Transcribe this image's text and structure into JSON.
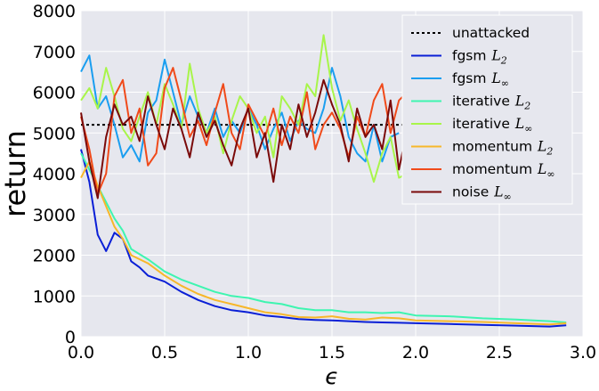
{
  "chart_data": {
    "type": "line",
    "title": "",
    "xlabel": "ϵ",
    "ylabel": "return",
    "xlim": [
      0,
      3
    ],
    "ylim": [
      0,
      8000
    ],
    "xticks": [
      "0.0",
      "0.5",
      "1.0",
      "1.5",
      "2.0",
      "2.5",
      "3.0"
    ],
    "yticks": [
      "0",
      "1000",
      "2000",
      "3000",
      "4000",
      "5000",
      "6000",
      "7000",
      "8000"
    ],
    "grid": true,
    "legend_position": "top-right",
    "series": [
      {
        "name": "unattacked",
        "label_main": "unattacked",
        "label_sub": "",
        "color": "#000000",
        "dash": true,
        "x": [
          0,
          2.9
        ],
        "y": [
          5200,
          5200
        ]
      },
      {
        "name": "fgsm L2",
        "label_main": "fgsm",
        "label_sub": "L",
        "label_subscript": "2",
        "color": "#0a1fd6",
        "x": [
          0,
          0.05,
          0.1,
          0.15,
          0.2,
          0.25,
          0.3,
          0.35,
          0.4,
          0.5,
          0.6,
          0.7,
          0.8,
          0.9,
          1.0,
          1.1,
          1.2,
          1.3,
          1.4,
          1.5,
          1.6,
          1.7,
          1.8,
          1.9,
          2.0,
          2.2,
          2.4,
          2.6,
          2.8,
          2.9
        ],
        "y": [
          4600,
          3800,
          2500,
          2100,
          2550,
          2400,
          1850,
          1700,
          1500,
          1350,
          1100,
          900,
          750,
          650,
          600,
          520,
          480,
          430,
          410,
          400,
          380,
          360,
          350,
          340,
          330,
          310,
          290,
          270,
          250,
          280
        ]
      },
      {
        "name": "fgsm L∞",
        "label_main": "fgsm",
        "label_sub": "L",
        "label_subscript": "∞",
        "color": "#1a9ef0",
        "x": [
          0,
          0.05,
          0.1,
          0.15,
          0.2,
          0.25,
          0.3,
          0.35,
          0.4,
          0.45,
          0.5,
          0.55,
          0.6,
          0.65,
          0.7,
          0.75,
          0.8,
          0.85,
          0.9,
          0.95,
          1.0,
          1.05,
          1.1,
          1.15,
          1.2,
          1.25,
          1.3,
          1.35,
          1.4,
          1.45,
          1.5,
          1.55,
          1.6,
          1.65,
          1.7,
          1.75,
          1.8,
          1.85,
          1.9
        ],
        "y": [
          6500,
          6900,
          5600,
          5900,
          5200,
          4400,
          4700,
          4300,
          5500,
          5800,
          6800,
          6000,
          5200,
          5900,
          5400,
          5000,
          5600,
          4900,
          5300,
          5000,
          5600,
          5200,
          4600,
          5100,
          5500,
          4800,
          5300,
          5100,
          5000,
          5600,
          6600,
          5900,
          4900,
          4500,
          4300,
          5200,
          4300,
          4900,
          5000
        ]
      },
      {
        "name": "iterative L2",
        "label_main": "iterative",
        "label_sub": "L",
        "label_subscript": "2",
        "color": "#3ef5b0",
        "x": [
          0,
          0.05,
          0.1,
          0.15,
          0.2,
          0.25,
          0.3,
          0.4,
          0.5,
          0.6,
          0.7,
          0.8,
          0.9,
          1.0,
          1.1,
          1.2,
          1.3,
          1.4,
          1.5,
          1.6,
          1.7,
          1.8,
          1.9,
          2.0,
          2.2,
          2.4,
          2.6,
          2.8,
          2.9
        ],
        "y": [
          4500,
          4100,
          3700,
          3300,
          2900,
          2600,
          2150,
          1900,
          1600,
          1400,
          1250,
          1100,
          1000,
          950,
          850,
          800,
          700,
          650,
          650,
          600,
          600,
          580,
          600,
          520,
          500,
          450,
          420,
          380,
          350
        ]
      },
      {
        "name": "iterative L∞",
        "label_main": "iterative",
        "label_sub": "L",
        "label_subscript": "∞",
        "color": "#a8f54a",
        "x": [
          0,
          0.05,
          0.1,
          0.15,
          0.2,
          0.25,
          0.3,
          0.35,
          0.4,
          0.45,
          0.5,
          0.55,
          0.6,
          0.65,
          0.7,
          0.75,
          0.8,
          0.85,
          0.9,
          0.95,
          1.0,
          1.05,
          1.1,
          1.15,
          1.2,
          1.25,
          1.3,
          1.35,
          1.4,
          1.45,
          1.5,
          1.55,
          1.6,
          1.65,
          1.7,
          1.75,
          1.8,
          1.85,
          1.9,
          1.95
        ],
        "y": [
          5800,
          6100,
          5600,
          6600,
          5900,
          5100,
          4800,
          5400,
          6000,
          5200,
          6200,
          5700,
          5100,
          6700,
          5600,
          5000,
          5400,
          4500,
          5300,
          5900,
          5600,
          5000,
          5400,
          4400,
          5900,
          5600,
          5200,
          6200,
          5900,
          7400,
          6100,
          5300,
          5800,
          5100,
          4500,
          3800,
          4500,
          4900,
          3900,
          4000
        ]
      },
      {
        "name": "momentum L2",
        "label_main": "momentum",
        "label_sub": "L",
        "label_subscript": "2",
        "color": "#f7b72a",
        "x": [
          0,
          0.05,
          0.1,
          0.15,
          0.2,
          0.25,
          0.3,
          0.4,
          0.5,
          0.6,
          0.7,
          0.8,
          0.9,
          1.0,
          1.1,
          1.2,
          1.3,
          1.4,
          1.5,
          1.6,
          1.7,
          1.8,
          1.9,
          2.0,
          2.2,
          2.4,
          2.6,
          2.8,
          2.9
        ],
        "y": [
          3900,
          4300,
          3700,
          3200,
          2700,
          2400,
          2000,
          1800,
          1500,
          1250,
          1050,
          900,
          800,
          700,
          600,
          550,
          480,
          470,
          500,
          440,
          420,
          470,
          450,
          400,
          380,
          360,
          330,
          300,
          330
        ]
      },
      {
        "name": "momentum L∞",
        "label_main": "momentum",
        "label_sub": "L",
        "label_subscript": "∞",
        "color": "#f04a1a",
        "x": [
          0,
          0.05,
          0.1,
          0.15,
          0.2,
          0.25,
          0.3,
          0.35,
          0.4,
          0.45,
          0.5,
          0.55,
          0.6,
          0.65,
          0.7,
          0.75,
          0.8,
          0.85,
          0.9,
          0.95,
          1.0,
          1.05,
          1.1,
          1.15,
          1.2,
          1.25,
          1.3,
          1.35,
          1.4,
          1.45,
          1.5,
          1.55,
          1.6,
          1.65,
          1.7,
          1.75,
          1.8,
          1.85,
          1.9,
          1.95
        ],
        "y": [
          5400,
          4600,
          3500,
          4000,
          5900,
          6300,
          5000,
          5600,
          4200,
          4500,
          6100,
          6600,
          5800,
          4900,
          5300,
          4700,
          5500,
          6200,
          5000,
          4600,
          5700,
          5300,
          4900,
          5600,
          4700,
          5400,
          5000,
          6000,
          4600,
          5200,
          5500,
          5100,
          4400,
          5400,
          4900,
          5800,
          6200,
          5000,
          5800,
          6000
        ]
      },
      {
        "name": "noise L∞",
        "label_main": "noise",
        "label_sub": "L",
        "label_subscript": "∞",
        "color": "#7a0a0a",
        "x": [
          0,
          0.05,
          0.1,
          0.15,
          0.2,
          0.25,
          0.3,
          0.35,
          0.4,
          0.45,
          0.5,
          0.55,
          0.6,
          0.65,
          0.7,
          0.75,
          0.8,
          0.85,
          0.9,
          0.95,
          1.0,
          1.05,
          1.1,
          1.15,
          1.2,
          1.25,
          1.3,
          1.35,
          1.4,
          1.45,
          1.5,
          1.55,
          1.6,
          1.65,
          1.7,
          1.75,
          1.8,
          1.85,
          1.9,
          1.95
        ],
        "y": [
          5500,
          4300,
          3400,
          4900,
          5700,
          5200,
          5400,
          4800,
          5900,
          5200,
          4600,
          5600,
          5100,
          4400,
          5500,
          4900,
          5300,
          4700,
          4200,
          5100,
          5600,
          4400,
          5000,
          3800,
          5200,
          4600,
          5700,
          4900,
          5500,
          6300,
          5700,
          5200,
          4300,
          5600,
          4900,
          5200,
          4600,
          5800,
          4100,
          5100
        ]
      }
    ]
  }
}
